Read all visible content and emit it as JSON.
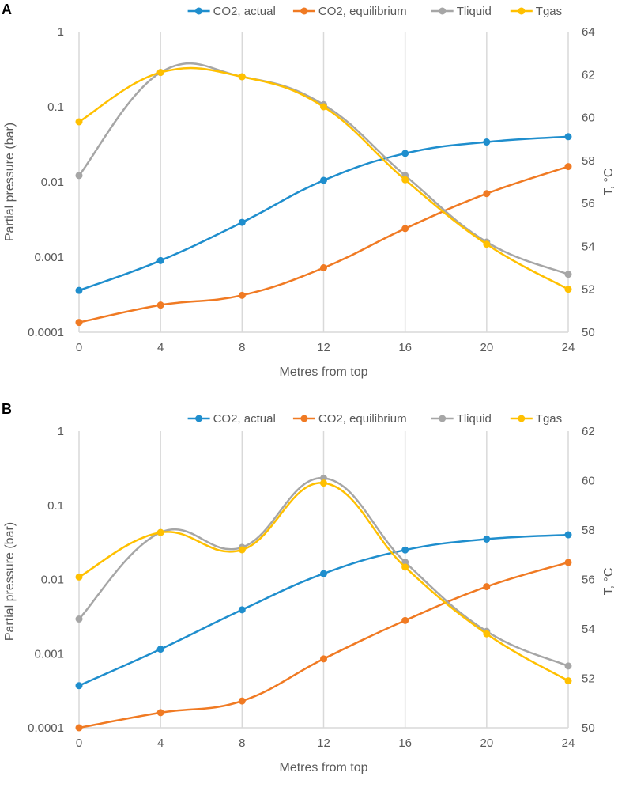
{
  "chart_data": [
    {
      "panel_label": "A",
      "type": "line",
      "x": [
        0,
        4,
        8,
        12,
        16,
        20,
        24
      ],
      "xlabel": "Metres from top",
      "x_ticks": [
        "0",
        "4",
        "8",
        "12",
        "16",
        "20",
        "24"
      ],
      "xlim": [
        0,
        24
      ],
      "ylabel": "Partial pressure (bar)",
      "yscale": "log",
      "ylim": [
        0.0001,
        1
      ],
      "y_ticks": [
        "0.0001",
        "0.001",
        "0.01",
        "0.1",
        "1"
      ],
      "y2label": "T, °C",
      "y2lim": [
        50,
        64
      ],
      "y2_ticks": [
        "50",
        "52",
        "54",
        "56",
        "58",
        "60",
        "62",
        "64"
      ],
      "legend_position": "top",
      "grid": "vertical",
      "series": [
        {
          "name": "CO2, actual",
          "axis": "left",
          "color": "#1f8ecd",
          "values": [
            0.00036,
            0.0009,
            0.0029,
            0.0105,
            0.024,
            0.034,
            0.04
          ]
        },
        {
          "name": "CO2, equilibrium",
          "axis": "left",
          "color": "#f07a23",
          "values": [
            0.000135,
            0.00023,
            0.00031,
            0.00072,
            0.0024,
            0.007,
            0.016
          ]
        },
        {
          "name": "Tliquid",
          "axis": "right",
          "color": "#a6a6a6",
          "values": [
            57.3,
            62.1,
            61.9,
            60.6,
            57.3,
            54.2,
            52.7
          ]
        },
        {
          "name": "Tgas",
          "axis": "right",
          "color": "#ffc000",
          "values": [
            59.8,
            62.1,
            61.9,
            60.5,
            57.1,
            54.1,
            52.0
          ]
        }
      ]
    },
    {
      "panel_label": "B",
      "type": "line",
      "x": [
        0,
        4,
        8,
        12,
        16,
        20,
        24
      ],
      "xlabel": "Metres from top",
      "x_ticks": [
        "0",
        "4",
        "8",
        "12",
        "16",
        "20",
        "24"
      ],
      "xlim": [
        0,
        24
      ],
      "ylabel": "Partial pressure (bar)",
      "yscale": "log",
      "ylim": [
        0.0001,
        1
      ],
      "y_ticks": [
        "0.0001",
        "0.001",
        "0.01",
        "0.1",
        "1"
      ],
      "y2label": "T, °C",
      "y2lim": [
        50,
        62
      ],
      "y2_ticks": [
        "50",
        "52",
        "54",
        "56",
        "58",
        "60",
        "62"
      ],
      "legend_position": "top",
      "grid": "vertical",
      "series": [
        {
          "name": "CO2, actual",
          "axis": "left",
          "color": "#1f8ecd",
          "values": [
            0.00037,
            0.00115,
            0.0039,
            0.012,
            0.025,
            0.035,
            0.04
          ]
        },
        {
          "name": "CO2, equilibrium",
          "axis": "left",
          "color": "#f07a23",
          "values": [
            0.0001,
            0.00016,
            0.00023,
            0.00085,
            0.0028,
            0.008,
            0.017
          ]
        },
        {
          "name": "Tliquid",
          "axis": "right",
          "color": "#a6a6a6",
          "values": [
            54.4,
            57.9,
            57.3,
            60.1,
            56.7,
            53.9,
            52.5
          ]
        },
        {
          "name": "Tgas",
          "axis": "right",
          "color": "#ffc000",
          "values": [
            56.1,
            57.9,
            57.2,
            59.9,
            56.5,
            53.8,
            51.9
          ]
        }
      ]
    }
  ]
}
